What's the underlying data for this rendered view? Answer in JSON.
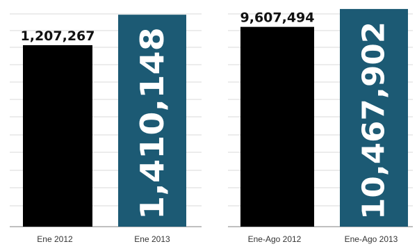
{
  "colors": {
    "dark_bar": "#000000",
    "accent_bar": "#1c5a74",
    "grid": "#d9d9d9",
    "axis": "#999999"
  },
  "chart_data": [
    {
      "type": "bar",
      "categories": [
        "Ene 2012",
        "Ene 2013"
      ],
      "values": [
        1207267,
        1410148
      ],
      "value_labels": [
        "1,207,267",
        "1,410,148"
      ],
      "title": "",
      "xlabel": "",
      "ylabel": "",
      "ylim": [
        0,
        1508000
      ],
      "grid": true
    },
    {
      "type": "bar",
      "categories": [
        "Ene-Ago 2012",
        "Ene-Ago 2013"
      ],
      "values": [
        9607494,
        10467902
      ],
      "value_labels": [
        "9,607,494",
        "10,467,902"
      ],
      "title": "",
      "xlabel": "",
      "ylabel": "",
      "ylim": [
        0,
        10900000
      ],
      "grid": true
    }
  ]
}
